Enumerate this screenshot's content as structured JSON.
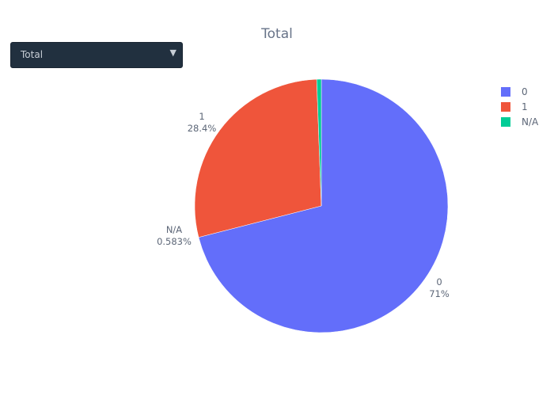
{
  "dropdown": {
    "selected": "Total",
    "arrow_icon": "triangle-down-icon"
  },
  "colors": {
    "0": "#636efa",
    "1": "#ef553b",
    "N/A": "#00cc96"
  },
  "chart_data": {
    "type": "pie",
    "title": "Total",
    "legend_placement": "top-right",
    "slices": [
      {
        "label": "0",
        "value": 71.0,
        "percent_text": "71%",
        "color": "#636efa"
      },
      {
        "label": "1",
        "value": 28.4,
        "percent_text": "28.4%",
        "color": "#ef553b"
      },
      {
        "label": "N/A",
        "value": 0.583,
        "percent_text": "0.583%",
        "color": "#00cc96"
      }
    ],
    "legend": [
      "0",
      "1",
      "N/A"
    ]
  }
}
